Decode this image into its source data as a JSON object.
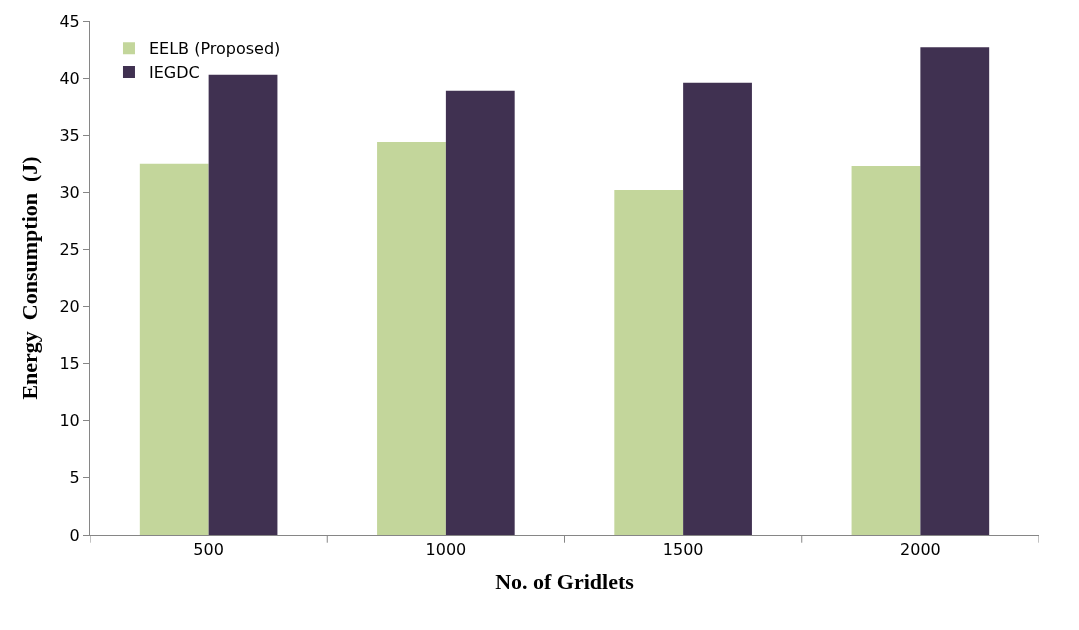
{
  "chart_data": {
    "type": "bar",
    "xlabel": "No. of Gridlets",
    "ylabel": "Energy  Consumption  (J)",
    "categories": [
      "500",
      "1000",
      "1500",
      "2000"
    ],
    "series": [
      {
        "name": "EELB (Proposed)",
        "color": "#c3d69b",
        "values": [
          32.5,
          34.4,
          30.2,
          32.3
        ]
      },
      {
        "name": "IEGDC",
        "color": "#403151",
        "values": [
          40.3,
          38.9,
          39.6,
          42.7
        ]
      }
    ],
    "ylim": [
      0,
      45
    ],
    "yticks": [
      0,
      5,
      10,
      15,
      20,
      25,
      30,
      35,
      40,
      45
    ],
    "legend": "top left"
  }
}
